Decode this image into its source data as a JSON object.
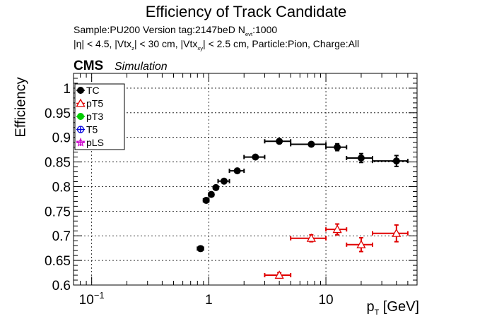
{
  "header": {
    "title": "Efficiency of Track Candidate",
    "subtitle_line1": "Sample:PU200   Version tag:2147beD  N_evt:1000",
    "subtitle_line2": "|η| < 4.5, |Vtx_z| < 30 cm, |Vtx_xy| < 2.5 cm, Particle:Pion, Charge:All",
    "cms_label": "CMS",
    "cms_sublabel": "Simulation"
  },
  "chart_data": {
    "type": "scatter",
    "title": "Efficiency of Track Candidate",
    "xlabel": "p_T [GeV]",
    "ylabel": "Efficiency",
    "xscale": "log",
    "xlim": [
      0.07,
      60
    ],
    "ylim": [
      0.6,
      1.03
    ],
    "grid": true,
    "legend_position": "top-left",
    "x_tick_labels": [
      "10^-1",
      "1",
      "10"
    ],
    "y_tick_labels": [
      "0.6",
      "0.65",
      "0.7",
      "0.75",
      "0.8",
      "0.85",
      "0.9",
      "0.95",
      "1"
    ],
    "series": [
      {
        "name": "TC",
        "color": "#000000",
        "marker": "filled-circle",
        "points": [
          {
            "x": 0.85,
            "y": 0.674,
            "xlo": 0.8,
            "xhi": 0.9,
            "yerr": 0.005
          },
          {
            "x": 0.95,
            "y": 0.772,
            "xlo": 0.9,
            "xhi": 1.0,
            "yerr": 0.004
          },
          {
            "x": 1.05,
            "y": 0.784,
            "xlo": 1.0,
            "xhi": 1.1,
            "yerr": 0.004
          },
          {
            "x": 1.15,
            "y": 0.798,
            "xlo": 1.1,
            "xhi": 1.2,
            "yerr": 0.004
          },
          {
            "x": 1.35,
            "y": 0.811,
            "xlo": 1.2,
            "xhi": 1.5,
            "yerr": 0.003
          },
          {
            "x": 1.75,
            "y": 0.832,
            "xlo": 1.5,
            "xhi": 2.0,
            "yerr": 0.003
          },
          {
            "x": 2.5,
            "y": 0.86,
            "xlo": 2.0,
            "xhi": 3.0,
            "yerr": 0.003
          },
          {
            "x": 4.0,
            "y": 0.892,
            "xlo": 3.0,
            "xhi": 5.0,
            "yerr": 0.003
          },
          {
            "x": 7.5,
            "y": 0.886,
            "xlo": 5.0,
            "xhi": 10.0,
            "yerr": 0.004
          },
          {
            "x": 12.5,
            "y": 0.88,
            "xlo": 10.0,
            "xhi": 15.0,
            "yerr": 0.007
          },
          {
            "x": 20.0,
            "y": 0.858,
            "xlo": 15.0,
            "xhi": 25.0,
            "yerr": 0.009
          },
          {
            "x": 40.0,
            "y": 0.852,
            "xlo": 25.0,
            "xhi": 50.0,
            "yerr": 0.011
          }
        ]
      },
      {
        "name": "pT5",
        "color": "#e00000",
        "marker": "open-triangle",
        "points": [
          {
            "x": 4.0,
            "y": 0.62,
            "xlo": 3.0,
            "xhi": 5.0,
            "yerr": 0.005
          },
          {
            "x": 7.5,
            "y": 0.695,
            "xlo": 5.0,
            "xhi": 10.0,
            "yerr": 0.007
          },
          {
            "x": 12.5,
            "y": 0.713,
            "xlo": 10.0,
            "xhi": 15.0,
            "yerr": 0.011
          },
          {
            "x": 20.0,
            "y": 0.682,
            "xlo": 15.0,
            "xhi": 25.0,
            "yerr": 0.014
          },
          {
            "x": 40.0,
            "y": 0.705,
            "xlo": 25.0,
            "xhi": 50.0,
            "yerr": 0.017
          }
        ]
      },
      {
        "name": "pT3",
        "color": "#00cc00",
        "marker": "filled-circle-cross",
        "points": []
      },
      {
        "name": "T5",
        "color": "#0000dd",
        "marker": "open-circle",
        "points": []
      },
      {
        "name": "pLS",
        "color": "#cc00cc",
        "marker": "open-star",
        "points": []
      }
    ]
  }
}
